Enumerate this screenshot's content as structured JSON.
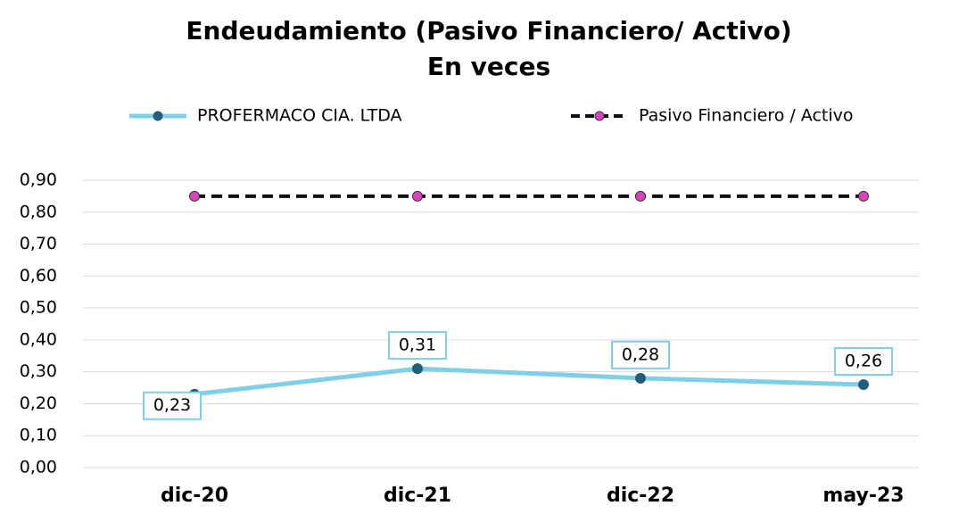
{
  "chart_data": {
    "type": "line",
    "title": "Endeudamiento (Pasivo Financiero/ Activo)",
    "subtitle": "En veces",
    "categories": [
      "dic-20",
      "dic-21",
      "dic-22",
      "may-23"
    ],
    "series": [
      {
        "name": "PROFERMACO CIA. LTDA",
        "color": "#7fcfe8",
        "marker_color": "#1f5f7a",
        "values": [
          0.23,
          0.31,
          0.28,
          0.26
        ],
        "value_labels": [
          "0,23",
          "0,31",
          "0,28",
          "0,26"
        ]
      },
      {
        "name": "Pasivo Financiero / Activo",
        "color": "#111111",
        "marker_color": "#e040c0",
        "dashed": true,
        "values": [
          0.85,
          0.85,
          0.85,
          0.85
        ]
      }
    ],
    "ylim": [
      0,
      0.9
    ],
    "yticks": [
      {
        "value": 0,
        "label": "0,00"
      },
      {
        "value": 0.1,
        "label": "0,10"
      },
      {
        "value": 0.2,
        "label": "0,20"
      },
      {
        "value": 0.3,
        "label": "0,30"
      },
      {
        "value": 0.4,
        "label": "0,40"
      },
      {
        "value": 0.5,
        "label": "0,50"
      },
      {
        "value": 0.6,
        "label": "0,60"
      },
      {
        "value": 0.7,
        "label": "0,70"
      },
      {
        "value": 0.8,
        "label": "0,80"
      },
      {
        "value": 0.9,
        "label": "0,90"
      }
    ],
    "grid": true,
    "legend": "top"
  }
}
